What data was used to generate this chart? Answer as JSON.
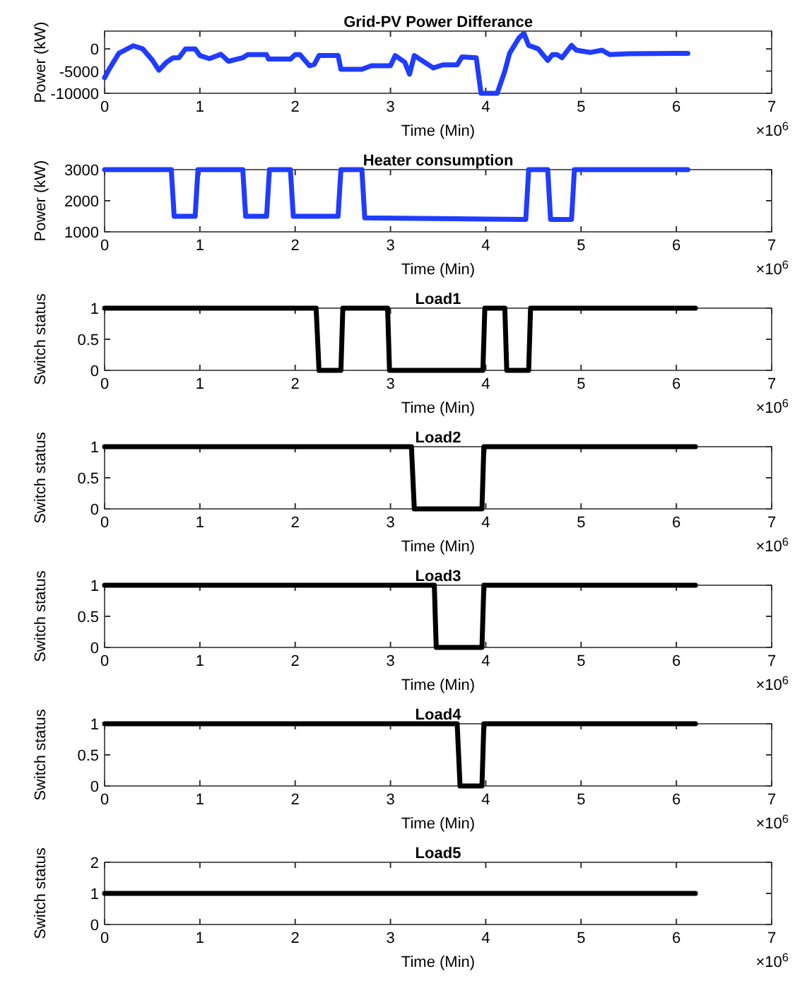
{
  "chart_data": [
    {
      "type": "line",
      "title": "Grid-PV Power Differance",
      "xlabel": "Time (Min)",
      "ylabel": "Power (kW)",
      "annotations": [
        "×10$^{6}$"
      ],
      "xlim": [
        0,
        7
      ],
      "xticks": [
        0,
        1,
        2,
        3,
        4,
        5,
        6,
        7
      ],
      "ylim": [
        -10000,
        4000
      ],
      "yticks": [
        -10000,
        -5000,
        0
      ],
      "grid": false,
      "series": [
        {
          "color": "#1f3cff",
          "x": [
            0,
            0.05,
            0.15,
            0.3,
            0.4,
            0.5,
            0.57,
            0.65,
            0.72,
            0.78,
            0.85,
            0.95,
            1.0,
            1.1,
            1.22,
            1.3,
            1.45,
            1.5,
            1.7,
            1.72,
            1.95,
            2.0,
            2.05,
            2.15,
            2.2,
            2.25,
            2.45,
            2.48,
            2.7,
            2.8,
            3.0,
            3.05,
            3.15,
            3.2,
            3.25,
            3.45,
            3.55,
            3.7,
            3.75,
            3.9,
            3.95,
            4.12,
            4.2,
            4.25,
            4.35,
            4.4,
            4.45,
            4.55,
            4.65,
            4.7,
            4.75,
            4.8,
            4.9,
            4.95,
            5.1,
            5.22,
            5.3,
            5.5,
            6.0,
            6.12
          ],
          "values": [
            -6500,
            -4500,
            -1000,
            700,
            0,
            -2500,
            -4800,
            -3000,
            -2000,
            -2000,
            0,
            0,
            -1500,
            -2200,
            -1200,
            -2800,
            -2000,
            -1300,
            -1300,
            -2300,
            -2300,
            -1300,
            -1300,
            -3800,
            -3500,
            -1500,
            -1500,
            -4600,
            -4600,
            -3800,
            -3800,
            -1500,
            -3000,
            -5700,
            -1500,
            -4300,
            -3600,
            -3600,
            -1800,
            -2000,
            -10000,
            -10000,
            -5000,
            -1000,
            2500,
            3500,
            800,
            0,
            -2600,
            -1300,
            -1300,
            -2000,
            800,
            -300,
            -800,
            -300,
            -1300,
            -1100,
            -1000,
            -1000
          ]
        }
      ]
    },
    {
      "type": "line",
      "title": "Heater consumption",
      "xlabel": "Time (Min)",
      "ylabel": "Power (kW)",
      "annotations": [
        "×10$^{6}$"
      ],
      "xlim": [
        0,
        7
      ],
      "xticks": [
        0,
        1,
        2,
        3,
        4,
        5,
        6,
        7
      ],
      "ylim": [
        1000,
        3000
      ],
      "yticks": [
        1000,
        2000,
        3000
      ],
      "grid": false,
      "series": [
        {
          "color": "#1f3cff",
          "x": [
            0,
            0.7,
            0.73,
            0.95,
            0.98,
            1.45,
            1.48,
            1.7,
            1.73,
            1.95,
            1.98,
            2.45,
            2.48,
            2.7,
            2.73,
            4.42,
            4.45,
            4.65,
            4.68,
            4.9,
            4.93,
            6.12
          ],
          "values": [
            3000,
            3000,
            1500,
            1500,
            3000,
            3000,
            1500,
            1500,
            3000,
            3000,
            1500,
            1500,
            3000,
            3000,
            1450,
            1400,
            3000,
            3000,
            1400,
            1400,
            3000,
            3000
          ]
        }
      ]
    },
    {
      "type": "line",
      "title": "Load1",
      "xlabel": "Time (Min)",
      "ylabel": "Switch status",
      "annotations": [
        "×10$^{6}$"
      ],
      "xlim": [
        0,
        7
      ],
      "xticks": [
        0,
        1,
        2,
        3,
        4,
        5,
        6,
        7
      ],
      "ylim": [
        0,
        1
      ],
      "yticks": [
        0,
        0.5,
        1
      ],
      "grid": false,
      "series": [
        {
          "color": "#000000",
          "x": [
            0,
            2.22,
            2.25,
            2.48,
            2.5,
            2.97,
            2.99,
            3.97,
            3.99,
            4.2,
            4.22,
            4.45,
            4.47,
            6.2
          ],
          "values": [
            1,
            1,
            0,
            0,
            1,
            1,
            0,
            0,
            1,
            1,
            0,
            0,
            1,
            1
          ]
        }
      ]
    },
    {
      "type": "line",
      "title": "Load2",
      "xlabel": "Time (Min)",
      "ylabel": "Switch status",
      "annotations": [
        "×10$^{6}$"
      ],
      "xlim": [
        0,
        7
      ],
      "xticks": [
        0,
        1,
        2,
        3,
        4,
        5,
        6,
        7
      ],
      "ylim": [
        0,
        1
      ],
      "yticks": [
        0,
        0.5,
        1
      ],
      "grid": false,
      "series": [
        {
          "color": "#000000",
          "x": [
            0,
            3.22,
            3.25,
            3.96,
            3.98,
            6.2
          ],
          "values": [
            1,
            1,
            0,
            0,
            1,
            1
          ]
        }
      ]
    },
    {
      "type": "line",
      "title": "Load3",
      "xlabel": "Time (Min)",
      "ylabel": "Switch status",
      "annotations": [
        "×10$^{6}$"
      ],
      "xlim": [
        0,
        7
      ],
      "xticks": [
        0,
        1,
        2,
        3,
        4,
        5,
        6,
        7
      ],
      "ylim": [
        0,
        1
      ],
      "yticks": [
        0,
        0.5,
        1
      ],
      "grid": false,
      "series": [
        {
          "color": "#000000",
          "x": [
            0,
            3.46,
            3.48,
            3.96,
            3.98,
            6.2
          ],
          "values": [
            1,
            1,
            0,
            0,
            1,
            1
          ]
        }
      ]
    },
    {
      "type": "line",
      "title": "Load4",
      "xlabel": "Time (Min)",
      "ylabel": "Switch status",
      "annotations": [
        "×10$^{6}$"
      ],
      "xlim": [
        0,
        7
      ],
      "xticks": [
        0,
        1,
        2,
        3,
        4,
        5,
        6,
        7
      ],
      "ylim": [
        0,
        1
      ],
      "yticks": [
        0,
        0.5,
        1
      ],
      "grid": false,
      "series": [
        {
          "color": "#000000",
          "x": [
            0,
            3.7,
            3.73,
            3.96,
            3.98,
            6.2
          ],
          "values": [
            1,
            1,
            0,
            0,
            1,
            1
          ]
        }
      ]
    },
    {
      "type": "line",
      "title": "Load5",
      "xlabel": "Time (Min)",
      "ylabel": "Switch status",
      "annotations": [
        "×10$^{6}$"
      ],
      "xlim": [
        0,
        7
      ],
      "xticks": [
        0,
        1,
        2,
        3,
        4,
        5,
        6,
        7
      ],
      "ylim": [
        0,
        2
      ],
      "yticks": [
        0,
        1,
        2
      ],
      "grid": false,
      "series": [
        {
          "color": "#000000",
          "x": [
            0,
            6.2
          ],
          "values": [
            1,
            1
          ]
        }
      ]
    }
  ]
}
